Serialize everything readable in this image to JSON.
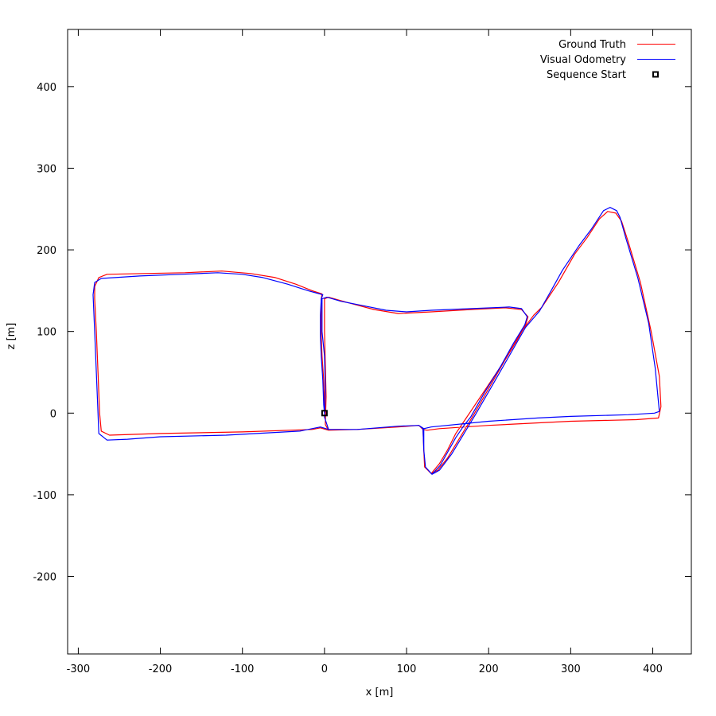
{
  "chart_data": {
    "type": "line",
    "title": "",
    "xlabel": "x [m]",
    "ylabel": "z [m]",
    "xlim": [
      -313,
      447
    ],
    "ylim": [
      -295,
      470
    ],
    "xticks": [
      -300,
      -200,
      -100,
      0,
      100,
      200,
      300,
      400
    ],
    "yticks": [
      -200,
      -100,
      0,
      100,
      200,
      300,
      400
    ],
    "xtick_labels": [
      "-300",
      "-200",
      "-100",
      "0",
      "100",
      "200",
      "300",
      "400"
    ],
    "ytick_labels": [
      "-200",
      "-100",
      "0",
      "100",
      "200",
      "300",
      "400"
    ],
    "grid": false,
    "legend_position": "top-right",
    "series": [
      {
        "name": "Ground Truth",
        "color": "#ff0000",
        "points": [
          [
            0,
            0
          ],
          [
            0,
            10
          ],
          [
            -1,
            40
          ],
          [
            -3,
            70
          ],
          [
            -4,
            95
          ],
          [
            -4,
            120
          ],
          [
            -4,
            140
          ],
          [
            -3,
            146
          ],
          [
            -15,
            150
          ],
          [
            -35,
            158
          ],
          [
            -60,
            166
          ],
          [
            -90,
            171
          ],
          [
            -125,
            174
          ],
          [
            -170,
            172
          ],
          [
            -220,
            171
          ],
          [
            -265,
            170
          ],
          [
            -275,
            166
          ],
          [
            -280,
            155
          ],
          [
            -280,
            140
          ],
          [
            -278,
            100
          ],
          [
            -276,
            50
          ],
          [
            -274,
            0
          ],
          [
            -272,
            -22
          ],
          [
            -262,
            -27
          ],
          [
            -200,
            -25
          ],
          [
            -100,
            -23
          ],
          [
            -15,
            -20
          ],
          [
            -5,
            -18
          ],
          [
            5,
            -21
          ],
          [
            40,
            -20
          ],
          [
            90,
            -17
          ],
          [
            115,
            -15
          ],
          [
            120,
            -20
          ],
          [
            121,
            -45
          ],
          [
            122,
            -66
          ],
          [
            130,
            -74
          ],
          [
            138,
            -70
          ],
          [
            150,
            -55
          ],
          [
            165,
            -30
          ],
          [
            180,
            -5
          ],
          [
            200,
            30
          ],
          [
            220,
            65
          ],
          [
            240,
            100
          ],
          [
            255,
            120
          ],
          [
            265,
            130
          ],
          [
            285,
            160
          ],
          [
            305,
            195
          ],
          [
            320,
            215
          ],
          [
            335,
            238
          ],
          [
            345,
            247
          ],
          [
            355,
            245
          ],
          [
            362,
            235
          ],
          [
            370,
            210
          ],
          [
            385,
            160
          ],
          [
            398,
            100
          ],
          [
            408,
            45
          ],
          [
            410,
            8
          ],
          [
            407,
            -6
          ],
          [
            380,
            -8
          ],
          [
            300,
            -10
          ],
          [
            200,
            -15
          ],
          [
            140,
            -19
          ],
          [
            125,
            -21
          ],
          [
            120,
            -20
          ],
          [
            115,
            -15
          ],
          [
            90,
            -17
          ],
          [
            40,
            -20
          ],
          [
            5,
            -21
          ],
          [
            1,
            -14
          ],
          [
            2,
            20
          ],
          [
            1,
            60
          ],
          [
            0,
            100
          ],
          [
            0,
            140
          ],
          [
            5,
            142
          ],
          [
            30,
            135
          ],
          [
            60,
            127
          ],
          [
            90,
            122
          ],
          [
            130,
            124
          ],
          [
            180,
            127
          ],
          [
            220,
            129
          ],
          [
            240,
            127
          ],
          [
            248,
            118
          ],
          [
            245,
            108
          ],
          [
            235,
            90
          ],
          [
            220,
            65
          ],
          [
            200,
            35
          ],
          [
            180,
            5
          ],
          [
            170,
            -10
          ],
          [
            160,
            -25
          ],
          [
            150,
            -45
          ],
          [
            140,
            -62
          ],
          [
            130,
            -74
          ],
          [
            122,
            -66
          ],
          [
            121,
            -45
          ],
          [
            120,
            -20
          ]
        ]
      },
      {
        "name": "Visual Odometry",
        "color": "#0000ff",
        "points": [
          [
            0,
            0
          ],
          [
            -1,
            10
          ],
          [
            -2,
            40
          ],
          [
            -4,
            70
          ],
          [
            -5,
            95
          ],
          [
            -5,
            120
          ],
          [
            -4,
            140
          ],
          [
            -2,
            145
          ],
          [
            -20,
            150
          ],
          [
            -45,
            158
          ],
          [
            -75,
            166
          ],
          [
            -100,
            170
          ],
          [
            -130,
            172
          ],
          [
            -175,
            170
          ],
          [
            -225,
            168
          ],
          [
            -272,
            165
          ],
          [
            -280,
            160
          ],
          [
            -282,
            145
          ],
          [
            -280,
            100
          ],
          [
            -278,
            50
          ],
          [
            -276,
            0
          ],
          [
            -275,
            -25
          ],
          [
            -265,
            -33
          ],
          [
            -240,
            -32
          ],
          [
            -200,
            -29
          ],
          [
            -120,
            -27
          ],
          [
            -30,
            -22
          ],
          [
            -5,
            -17
          ],
          [
            5,
            -20
          ],
          [
            40,
            -20
          ],
          [
            90,
            -16
          ],
          [
            115,
            -15
          ],
          [
            120,
            -19
          ],
          [
            121,
            -45
          ],
          [
            123,
            -66
          ],
          [
            131,
            -75
          ],
          [
            140,
            -70
          ],
          [
            155,
            -50
          ],
          [
            170,
            -25
          ],
          [
            185,
            0
          ],
          [
            205,
            35
          ],
          [
            225,
            70
          ],
          [
            245,
            105
          ],
          [
            262,
            125
          ],
          [
            275,
            148
          ],
          [
            290,
            175
          ],
          [
            310,
            205
          ],
          [
            325,
            225
          ],
          [
            340,
            248
          ],
          [
            348,
            252
          ],
          [
            356,
            248
          ],
          [
            360,
            240
          ],
          [
            367,
            215
          ],
          [
            382,
            165
          ],
          [
            395,
            110
          ],
          [
            403,
            55
          ],
          [
            408,
            2
          ],
          [
            402,
            0
          ],
          [
            370,
            -2
          ],
          [
            300,
            -4
          ],
          [
            260,
            -6
          ],
          [
            200,
            -10
          ],
          [
            130,
            -17
          ],
          [
            121,
            -19
          ],
          [
            115,
            -15
          ],
          [
            90,
            -16
          ],
          [
            40,
            -20
          ],
          [
            5,
            -20
          ],
          [
            0,
            -5
          ],
          [
            1,
            30
          ],
          [
            0,
            70
          ],
          [
            -3,
            100
          ],
          [
            -3,
            140
          ],
          [
            3,
            142
          ],
          [
            20,
            137
          ],
          [
            45,
            132
          ],
          [
            75,
            126
          ],
          [
            100,
            124
          ],
          [
            130,
            126
          ],
          [
            180,
            128
          ],
          [
            225,
            130
          ],
          [
            240,
            128
          ],
          [
            247,
            118
          ],
          [
            244,
            108
          ],
          [
            230,
            85
          ],
          [
            215,
            58
          ],
          [
            195,
            25
          ],
          [
            178,
            -5
          ],
          [
            170,
            -15
          ],
          [
            160,
            -30
          ],
          [
            150,
            -48
          ],
          [
            141,
            -64
          ],
          [
            131,
            -75
          ],
          [
            123,
            -66
          ],
          [
            121,
            -45
          ],
          [
            121,
            -19
          ]
        ]
      }
    ],
    "markers": [
      {
        "name": "Sequence Start",
        "x": 0,
        "y": 0,
        "shape": "square",
        "color": "#000000"
      }
    ]
  }
}
